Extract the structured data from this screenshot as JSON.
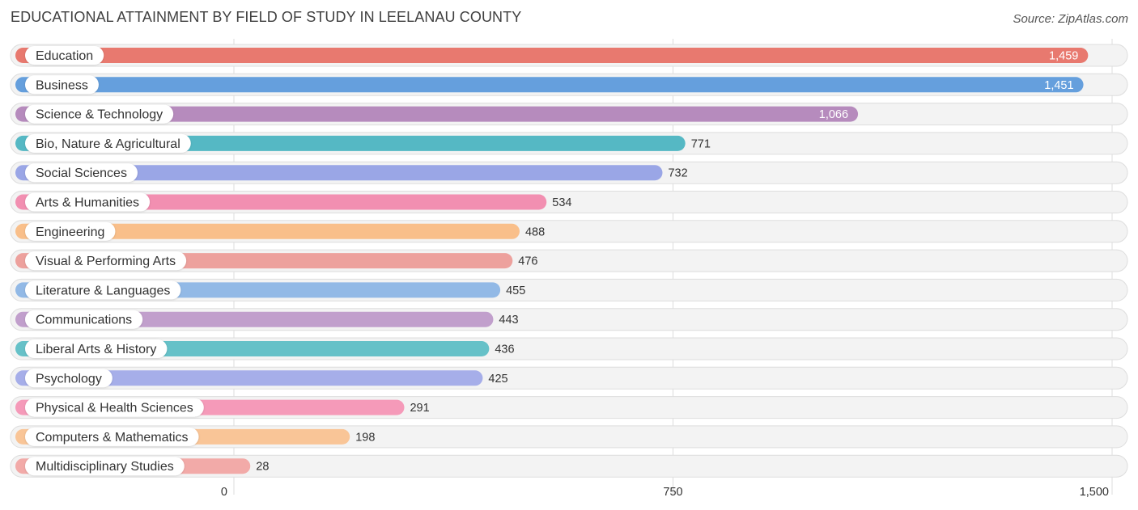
{
  "chart_data": {
    "type": "bar",
    "orientation": "horizontal",
    "title": "EDUCATIONAL ATTAINMENT BY FIELD OF STUDY IN LEELANAU COUNTY",
    "source": "Source: ZipAtlas.com",
    "xlim": [
      0,
      1500
    ],
    "xticks": [
      0,
      750,
      1500
    ],
    "xtick_labels": [
      "0",
      "750",
      "1,500"
    ],
    "grid": true,
    "categories": [
      "Education",
      "Business",
      "Science & Technology",
      "Bio, Nature & Agricultural",
      "Social Sciences",
      "Arts & Humanities",
      "Engineering",
      "Visual & Performing Arts",
      "Literature & Languages",
      "Communications",
      "Liberal Arts & History",
      "Psychology",
      "Physical & Health Sciences",
      "Computers & Mathematics",
      "Multidisciplinary Studies"
    ],
    "values": [
      1459,
      1451,
      1066,
      771,
      732,
      534,
      488,
      476,
      455,
      443,
      436,
      425,
      291,
      198,
      28
    ],
    "value_labels": [
      "1,459",
      "1,451",
      "1,066",
      "771",
      "732",
      "534",
      "488",
      "476",
      "455",
      "443",
      "436",
      "425",
      "291",
      "198",
      "28"
    ],
    "colors": [
      "#e8796f",
      "#659fdd",
      "#b68bbd",
      "#55b8c4",
      "#9aa6e6",
      "#f28fb1",
      "#f9bf8a",
      "#eda19d",
      "#92b9e6",
      "#c19fcc",
      "#66c1c8",
      "#a6aee9",
      "#f59ab9",
      "#f9c597",
      "#f2aaa8"
    ]
  }
}
